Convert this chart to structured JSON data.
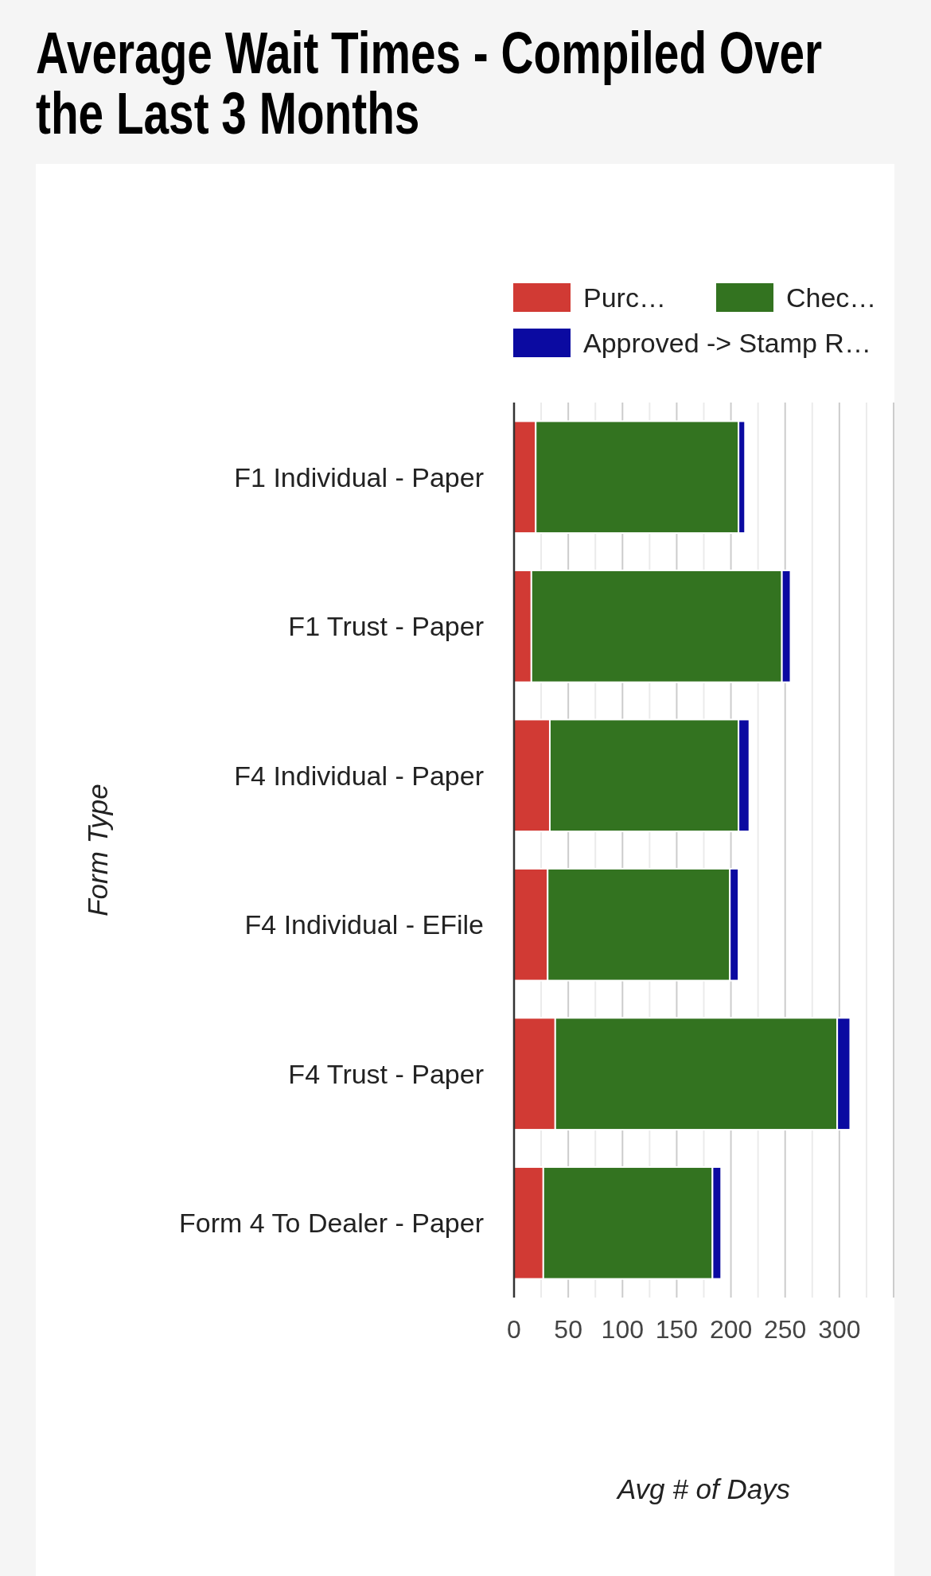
{
  "chart_data": {
    "type": "bar",
    "orientation": "horizontal",
    "stacked": true,
    "title": "Average Wait Times - Compiled Over the Last 3 Months",
    "xlabel": "Avg # of Days",
    "ylabel": "Form Type",
    "categories": [
      "F1 Individual - Paper",
      "F1 Trust - Paper",
      "F4 Individual - Paper",
      "F4 Individual - EFile",
      "F4 Trust - Paper",
      "Form 4 To Dealer - Paper"
    ],
    "series": [
      {
        "name": "Purc…",
        "color": "#d13a34",
        "values": [
          20,
          16,
          33,
          31,
          38,
          27
        ]
      },
      {
        "name": "Chec…",
        "color": "#337320",
        "values": [
          187,
          231,
          174,
          168,
          260,
          156
        ]
      },
      {
        "name": "Approved -> Stamp R…",
        "color": "#0b0aa1",
        "values": [
          6,
          8,
          10,
          8,
          12,
          8
        ]
      }
    ],
    "xlim": [
      0,
      350
    ],
    "xticks": [
      0,
      {
        "value": 25,
        "label": null
      },
      50,
      {
        "value": 75,
        "label": null
      },
      100,
      {
        "value": 125,
        "label": null
      },
      150,
      {
        "value": 175,
        "label": null
      },
      200,
      {
        "value": 225,
        "label": null
      },
      250,
      {
        "value": 275,
        "label": null
      },
      300,
      {
        "value": 325,
        "label": null
      },
      {
        "value": 350,
        "label": null
      }
    ],
    "grid": "x",
    "legend": "top"
  }
}
